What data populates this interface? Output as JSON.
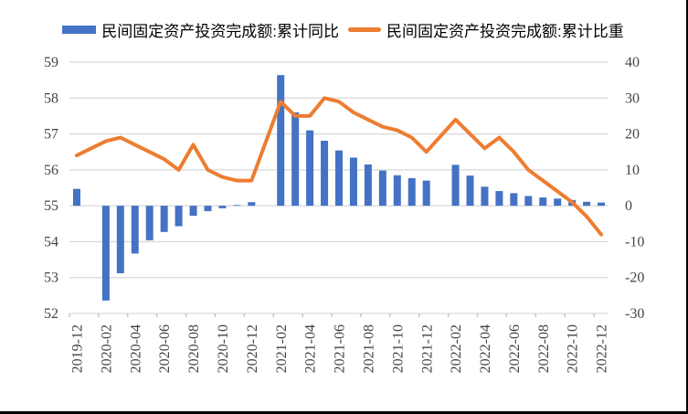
{
  "legend": {
    "series1": "民间固定资产投资完成额:累计同比",
    "series2": "民间固定资产投资完成额:累计比重"
  },
  "colors": {
    "bar": "#4472C4",
    "line": "#ED7D31",
    "grid": "#D9D9D9",
    "tick": "#BFBFBF",
    "axis_text": "#444444",
    "border": "#000000",
    "background": "#FFFFFF"
  },
  "chart_data": {
    "type": "combo",
    "categories": [
      "2019-12",
      "2020-02",
      "2020-03",
      "2020-04",
      "2020-05",
      "2020-06",
      "2020-07",
      "2020-08",
      "2020-09",
      "2020-10",
      "2020-11",
      "2020-12",
      "2021-02",
      "2021-03",
      "2021-04",
      "2021-05",
      "2021-06",
      "2021-07",
      "2021-08",
      "2021-09",
      "2021-10",
      "2021-11",
      "2021-12",
      "2022-02",
      "2022-03",
      "2022-04",
      "2022-05",
      "2022-06",
      "2022-07",
      "2022-08",
      "2022-09",
      "2022-10",
      "2022-11",
      "2022-12"
    ],
    "series": [
      {
        "name": "民间固定资产投资完成额:累计同比",
        "type": "bar",
        "axis": "right",
        "values": [
          4.7,
          -26.4,
          -18.8,
          -13.3,
          -9.6,
          -7.3,
          -5.7,
          -2.8,
          -1.5,
          -0.7,
          0.2,
          1.0,
          36.4,
          26.0,
          21.0,
          18.1,
          15.4,
          13.4,
          11.5,
          9.8,
          8.5,
          7.7,
          7.0,
          11.4,
          8.4,
          5.3,
          4.1,
          3.5,
          2.7,
          2.3,
          2.0,
          1.6,
          1.1,
          0.9
        ]
      },
      {
        "name": "民间固定资产投资完成额:累计比重",
        "type": "line",
        "axis": "left",
        "values": [
          56.4,
          56.8,
          56.9,
          56.7,
          56.5,
          56.3,
          56.0,
          56.7,
          56.0,
          55.8,
          55.7,
          55.7,
          57.9,
          57.5,
          57.5,
          58.0,
          57.9,
          57.6,
          57.4,
          57.2,
          57.1,
          56.9,
          56.5,
          57.4,
          57.0,
          56.6,
          56.9,
          56.5,
          56.0,
          55.7,
          55.4,
          55.1,
          54.7,
          54.2
        ]
      }
    ],
    "left_axis": {
      "min": 52,
      "max": 59,
      "step": 1
    },
    "right_axis": {
      "min": -30,
      "max": 40,
      "step": 10
    },
    "x_tick_labels": [
      "2019-12",
      "2020-02",
      "2020-04",
      "2020-06",
      "2020-08",
      "2020-10",
      "2020-12",
      "2021-02",
      "2021-04",
      "2021-06",
      "2021-08",
      "2021-10",
      "2021-12",
      "2022-02",
      "2022-04",
      "2022-06",
      "2022-08",
      "2022-10",
      "2022-12"
    ],
    "grid": true,
    "legend_position": "top-center"
  }
}
